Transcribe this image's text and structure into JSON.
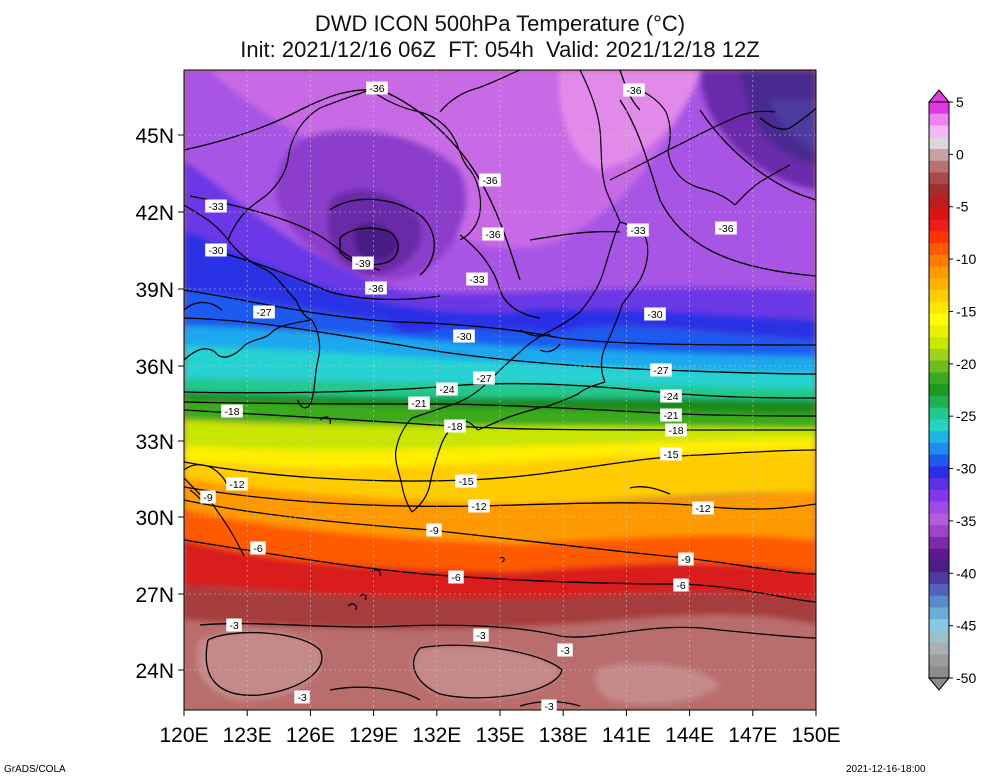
{
  "title": "DWD ICON 500hPa Temperature (°C)",
  "subtitle": "Init: 2021/12/16 06Z  FT: 054h  Valid: 2021/12/18 12Z",
  "lat_labels": [
    "45N",
    "42N",
    "39N",
    "36N",
    "33N",
    "30N",
    "27N",
    "24N"
  ],
  "lon_labels": [
    "120E",
    "123E",
    "126E",
    "129E",
    "132E",
    "135E",
    "138E",
    "141E",
    "144E",
    "147E",
    "150E"
  ],
  "colorbar": {
    "labels": [
      "5",
      "0",
      "-5",
      "-10",
      "-15",
      "-20",
      "-25",
      "-30",
      "-35",
      "-40",
      "-45",
      "-50"
    ],
    "colors": [
      "#e238e2",
      "#ec84ec",
      "#f4b6f4",
      "#d8d8d8",
      "#c8a2a2",
      "#b97171",
      "#a84a4a",
      "#a22d2d",
      "#bf1d1d",
      "#d91414",
      "#ef1e1e",
      "#ff3300",
      "#ff5a00",
      "#ff7a00",
      "#ff9900",
      "#ffb200",
      "#ffcc00",
      "#ffe600",
      "#ffff00",
      "#e6f200",
      "#c8e600",
      "#9ed21e",
      "#6cbe1e",
      "#3aaa1e",
      "#1a9a1e",
      "#1fb050",
      "#24c88c",
      "#26d2c2",
      "#20b4e6",
      "#1e8cf0",
      "#1e5af0",
      "#2a2ee6",
      "#5a32e6",
      "#8238e6",
      "#a04ae6",
      "#b45cd8",
      "#9f44c8",
      "#7a2ca8",
      "#5c1a8c",
      "#4a1e82",
      "#4d3aa0",
      "#5262b8",
      "#5a8ac8",
      "#6cacd8",
      "#8ac8e2",
      "#9cc0c8",
      "#a8b0b4",
      "#9c9c9c",
      "#8c8c8c"
    ]
  },
  "contour_labels": [
    "-36",
    "-36",
    "-36",
    "-36",
    "-36",
    "-36",
    "-33",
    "-33",
    "-33",
    "-30",
    "-30",
    "-30",
    "-39",
    "-27",
    "-27",
    "-27",
    "-24",
    "-24",
    "-21",
    "-21",
    "-18",
    "-18",
    "-18",
    "-15",
    "-15",
    "-12",
    "-12",
    "-12",
    "-9",
    "-9",
    "-9",
    "-6",
    "-6",
    "-6",
    "-3",
    "-3",
    "-3",
    "-3",
    "-3"
  ],
  "footer_left": "GrADS/COLA",
  "footer_right": "2021-12-16-18:00"
}
